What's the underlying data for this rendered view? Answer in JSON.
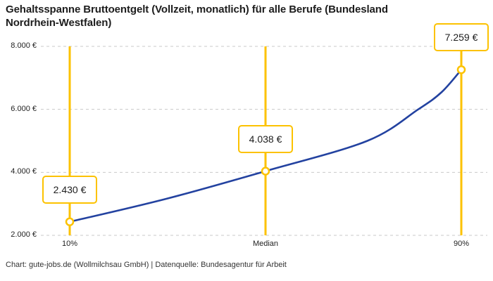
{
  "title": "Gehaltsspanne Bruttoentgelt (Vollzeit, monatlich) für alle Berufe (Bundesland Nordrhein-Westfalen)",
  "footer": "Chart: gute-jobs.de (Wollmilchsau GmbH) | Datenquelle: Bundesagentur für Arbeit",
  "colors": {
    "accent_yellow": "#fcc200",
    "line_blue": "#2342a0",
    "grid": "#c9c9c9",
    "text": "#1d1d1d",
    "background": "#ffffff"
  },
  "chart_data": {
    "type": "line",
    "title": "Gehaltsspanne Bruttoentgelt (Vollzeit, monatlich) für alle Berufe (Bundesland Nordrhein-Westfalen)",
    "categories": [
      "10%",
      "Median",
      "90%"
    ],
    "values": [
      2430,
      4038,
      7259
    ],
    "value_labels": [
      "2.430 €",
      "4.038 €",
      "7.259 €"
    ],
    "unit": "€",
    "xlabel": "",
    "ylabel": "",
    "ylim": [
      2000,
      8000
    ],
    "yticks": [
      2000,
      4000,
      6000,
      8000
    ],
    "ytick_labels": [
      "2.000 €",
      "4.000 €",
      "6.000 €",
      "8.000 €"
    ],
    "grid": "horizontal dashed",
    "legend": "none",
    "curve_samples": [
      [
        0,
        2430
      ],
      [
        0.25,
        3170
      ],
      [
        0.5,
        4038
      ],
      [
        0.76,
        5000
      ],
      [
        0.89,
        6000
      ],
      [
        0.95,
        6550
      ],
      [
        1,
        7259
      ]
    ],
    "source": "Chart: gute-jobs.de (Wollmilchsau GmbH) | Datenquelle: Bundesagentur für Arbeit"
  }
}
